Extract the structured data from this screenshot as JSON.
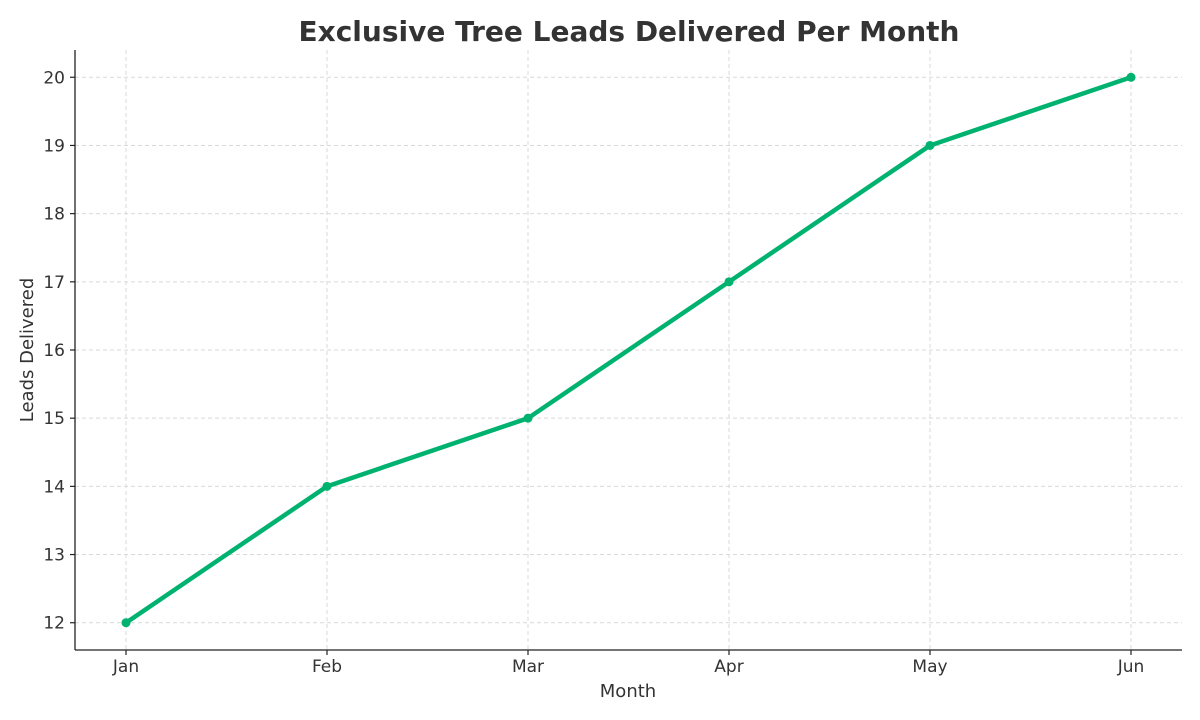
{
  "chart_data": {
    "type": "line",
    "title": "Exclusive Tree Leads Delivered Per Month",
    "xlabel": "Month",
    "ylabel": "Leads Delivered",
    "categories": [
      "Jan",
      "Feb",
      "Mar",
      "Apr",
      "May",
      "Jun"
    ],
    "series": [
      {
        "values": [
          12,
          14,
          15,
          17,
          19,
          20
        ],
        "color": "#00b26f"
      }
    ],
    "yticks": [
      12,
      13,
      14,
      15,
      16,
      17,
      18,
      19,
      20
    ],
    "ylim": [
      11.6,
      20.4
    ],
    "grid": true,
    "marker": "circle"
  }
}
